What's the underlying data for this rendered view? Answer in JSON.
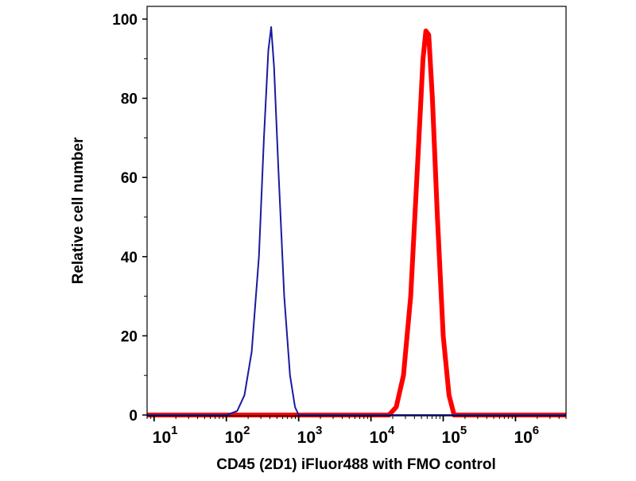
{
  "chart_data": {
    "type": "line",
    "title": "",
    "xlabel": "CD45 (2D1) iFluor488 with FMO control",
    "ylabel": "Relative cell number",
    "xscale": "log",
    "xlim": [
      8,
      5000000
    ],
    "ylim": [
      0,
      100
    ],
    "x_ticks": [
      {
        "value": 10,
        "base": "10",
        "exp": "1"
      },
      {
        "value": 100,
        "base": "10",
        "exp": "2"
      },
      {
        "value": 1000,
        "base": "10",
        "exp": "3"
      },
      {
        "value": 10000,
        "base": "10",
        "exp": "4"
      },
      {
        "value": 100000,
        "base": "10",
        "exp": "5"
      },
      {
        "value": 1000000,
        "base": "10",
        "exp": "6"
      }
    ],
    "y_ticks": [
      "0",
      "20",
      "40",
      "60",
      "80",
      "100"
    ],
    "grid": false,
    "series": [
      {
        "color": "#1a1aa0",
        "x": [
          8,
          100,
          141,
          178,
          224,
          282,
          331,
          380,
          417,
          457,
          525,
          631,
          759,
          891,
          1000,
          5000000
        ],
        "y": [
          0,
          0,
          1,
          5,
          16,
          40,
          70,
          92,
          98,
          88,
          62,
          30,
          10,
          2,
          0,
          0
        ]
      },
      {
        "color": "#ff0000",
        "x": [
          8,
          17783,
          22387,
          28184,
          35481,
          44668,
          52481,
          57544,
          63096,
          70795,
          83176,
          100000,
          120226,
          141254,
          5000000
        ],
        "y": [
          0,
          0,
          2,
          10,
          30,
          65,
          90,
          97,
          96,
          80,
          50,
          20,
          5,
          0,
          0
        ]
      }
    ]
  }
}
